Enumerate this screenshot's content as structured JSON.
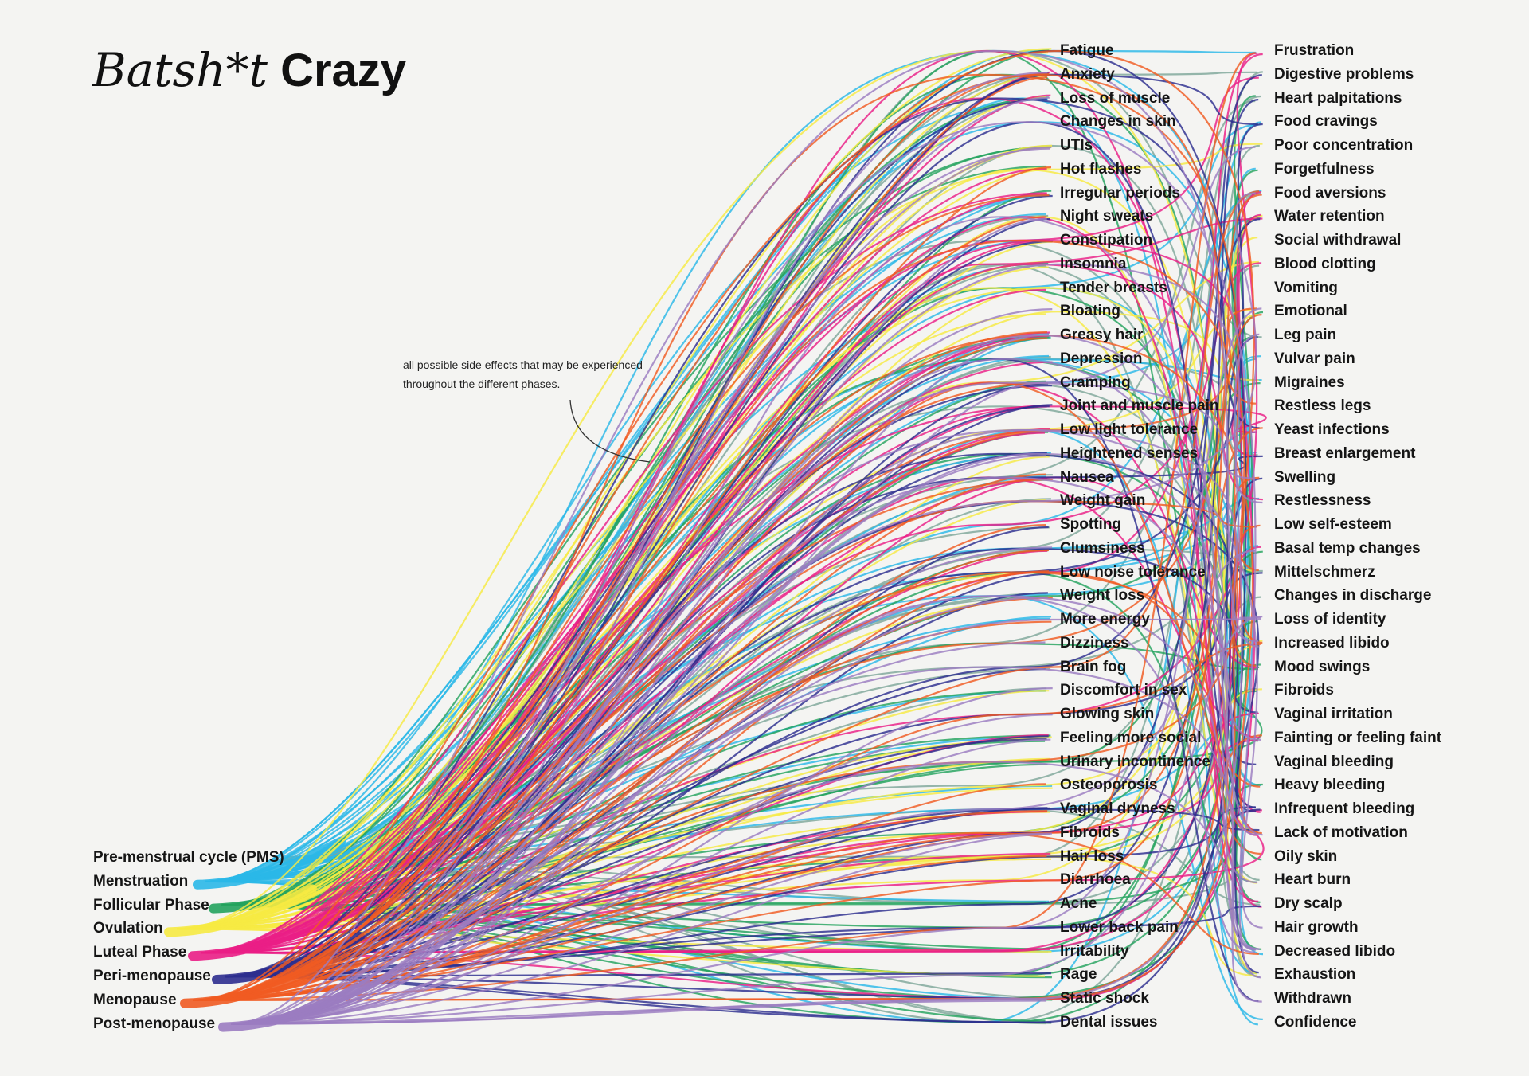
{
  "title": {
    "italic": "Batsh*t",
    "bold": "Crazy"
  },
  "note": "all possible side effects that may be experienced throughout the different phases.",
  "phases": [
    {
      "label": "Pre-menstrual cycle (PMS)",
      "color": "#7fa79a"
    },
    {
      "label": "Menstruation",
      "color": "#2bb8e8"
    },
    {
      "label": "Follicular Phase",
      "color": "#24a35e"
    },
    {
      "label": "Ovulation",
      "color": "#f6ea43"
    },
    {
      "label": "Luteal Phase",
      "color": "#ea1e86"
    },
    {
      "label": "Peri-menopause",
      "color": "#2d2e8f"
    },
    {
      "label": "Menopause",
      "color": "#f05b22"
    },
    {
      "label": "Post-menopause",
      "color": "#9b7cc1"
    }
  ],
  "symptoms_col1": [
    "Fatigue",
    "Anxiety",
    "Loss of muscle",
    "Changes in skin",
    "UTIs",
    "Hot flashes",
    "Irregular periods",
    "Night sweats",
    "Constipation",
    "Insomnia",
    "Tender breasts",
    "Bloating",
    "Greasy hair",
    "Depression",
    "Cramping",
    "Joint and muscle pain",
    "Low light tolerance",
    "Heightened senses",
    "Nausea",
    "Weight gain",
    "Spotting",
    "Clumsiness",
    "Low noise tolerance",
    "Weight loss",
    "More energy",
    "Dizziness",
    "Brain fog",
    "Discomfort in sex",
    "Glowing skin",
    "Feeling more social",
    "Urinary incontinence",
    "Osteoporosis",
    "Vaginal dryness",
    "Fibroids",
    "Hair loss",
    "Diarrhoea",
    "Acne",
    "Lower back pain",
    "Irritability",
    "Rage",
    "Static shock",
    "Dental issues"
  ],
  "symptoms_col2": [
    "Frustration",
    "Digestive problems",
    "Heart palpitations",
    "Food cravings",
    "Poor concentration",
    "Forgetfulness",
    "Food aversions",
    "Water retention",
    "Social withdrawal",
    "Blood clotting",
    "Vomiting",
    "Emotional",
    "Leg pain",
    "Vulvar pain",
    "Migraines",
    "Restless legs",
    "Yeast infections",
    "Breast enlargement",
    "Swelling",
    "Restlessness",
    "Low self-esteem",
    "Basal temp changes",
    "Mittelschmerz",
    "Changes in discharge",
    "Loss of identity",
    "Increased libido",
    "Mood swings",
    "Fibroids",
    "Vaginal irritation",
    "Fainting or feeling faint",
    "Vaginal bleeding",
    "Heavy bleeding",
    "Infrequent bleeding",
    "Lack of motivation",
    "Oily skin",
    "Heart burn",
    "Dry scalp",
    "Hair growth",
    "Decreased libido",
    "Exhaustion",
    "Withdrawn",
    "Confidence"
  ]
}
